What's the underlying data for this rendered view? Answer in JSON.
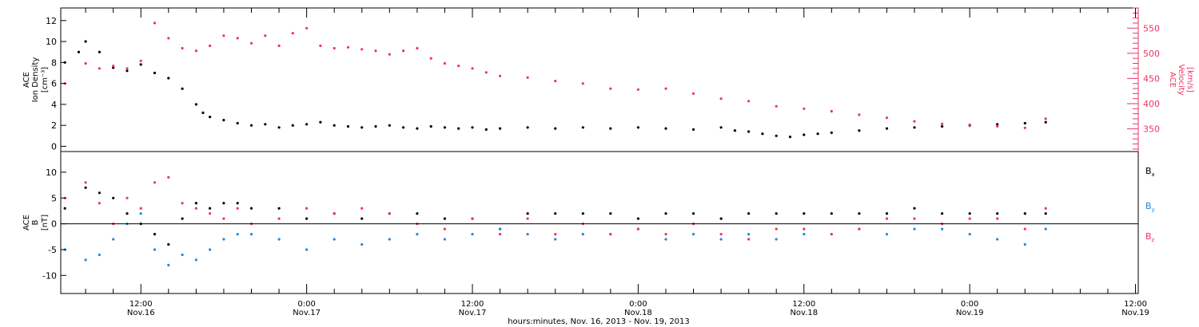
{
  "x_axis": {
    "title": "hours:minutes, Nov. 16, 2013 - Nov. 19, 2013",
    "ticks": [
      {
        "t": 12,
        "time": "12:00",
        "date": "Nov.16"
      },
      {
        "t": 24,
        "time": "0:00",
        "date": "Nov.17"
      },
      {
        "t": 36,
        "time": "12:00",
        "date": "Nov.17"
      },
      {
        "t": 48,
        "time": "0:00",
        "date": "Nov.18"
      },
      {
        "t": 60,
        "time": "12:00",
        "date": "Nov.18"
      },
      {
        "t": 72,
        "time": "0:00",
        "date": "Nov.19"
      },
      {
        "t": 84,
        "time": "12:00",
        "date": "Nov.19"
      }
    ]
  },
  "colors": {
    "black": "#000000",
    "pink": "#ee3366",
    "blue": "#1e88e5"
  },
  "chart_data": [
    {
      "type": "scatter",
      "panel": "top",
      "xlim": [
        6.2,
        84.2
      ],
      "ylim_left": [
        -0.5,
        13.2
      ],
      "ylim_right": [
        305,
        590
      ],
      "left_label_lines": [
        "ACE",
        "Ion Density",
        "[cm⁻³]"
      ],
      "right_label_lines": [
        "ACE",
        "Velocity",
        "[km/s]"
      ],
      "left_ticks": [
        0,
        2,
        4,
        6,
        8,
        10,
        12
      ],
      "right_ticks": [
        350,
        400,
        450,
        500,
        550
      ],
      "series": [
        {
          "axis": "left",
          "color": "black",
          "x": [
            6.5,
            7.5,
            8.0,
            9.0,
            10.0,
            11.0,
            12.0,
            13.0,
            14.0,
            15.0,
            16.0,
            16.5,
            17.0,
            18.0,
            19.0,
            20.0,
            21.0,
            22.0,
            23.0,
            24.0,
            25.0,
            26.0,
            27.0,
            28.0,
            29.0,
            30.0,
            31.0,
            32.0,
            33.0,
            34.0,
            35.0,
            36.0,
            37.0,
            38.0,
            40.0,
            42.0,
            44.0,
            46.0,
            48.0,
            50.0,
            52.0,
            54.0,
            55.0,
            56.0,
            57.0,
            58.0,
            59.0,
            60.0,
            61.0,
            62.0,
            64.0,
            66.0,
            68.0,
            70.0,
            72.0,
            74.0,
            76.0,
            77.5
          ],
          "y": [
            8,
            9,
            10,
            9,
            7.5,
            7.2,
            7.8,
            7,
            6.5,
            5.5,
            4,
            3.2,
            2.8,
            2.5,
            2.2,
            2.0,
            2.1,
            1.8,
            2.0,
            2.1,
            2.3,
            2.0,
            1.9,
            1.8,
            1.9,
            2.0,
            1.8,
            1.7,
            1.9,
            1.8,
            1.7,
            1.8,
            1.6,
            1.7,
            1.8,
            1.7,
            1.8,
            1.7,
            1.8,
            1.7,
            1.6,
            1.8,
            1.5,
            1.4,
            1.2,
            1.0,
            0.9,
            1.1,
            1.2,
            1.3,
            1.5,
            1.7,
            1.8,
            1.9,
            2.0,
            2.1,
            2.2,
            2.3
          ]
        },
        {
          "axis": "right",
          "color": "pink",
          "x": [
            6.5,
            8.0,
            9.0,
            10.0,
            11.0,
            12.0,
            13.0,
            14.0,
            15.0,
            16.0,
            17.0,
            18.0,
            19.0,
            20.0,
            21.0,
            22.0,
            23.0,
            24.0,
            25.0,
            26.0,
            27.0,
            28.0,
            29.0,
            30.0,
            31.0,
            32.0,
            33.0,
            34.0,
            35.0,
            36.0,
            37.0,
            38.0,
            40.0,
            42.0,
            44.0,
            46.0,
            48.0,
            50.0,
            52.0,
            54.0,
            56.0,
            58.0,
            60.0,
            62.0,
            64.0,
            66.0,
            68.0,
            70.0,
            72.0,
            74.0,
            76.0,
            77.5
          ],
          "y": [
            440,
            480,
            470,
            475,
            470,
            485,
            560,
            530,
            510,
            505,
            515,
            535,
            530,
            520,
            535,
            515,
            540,
            550,
            515,
            510,
            512,
            508,
            505,
            498,
            505,
            510,
            490,
            480,
            475,
            470,
            462,
            455,
            452,
            445,
            440,
            430,
            428,
            430,
            420,
            410,
            405,
            395,
            390,
            385,
            378,
            372,
            365,
            360,
            358,
            355,
            352,
            370
          ]
        }
      ]
    },
    {
      "type": "scatter",
      "panel": "bottom",
      "xlim": [
        6.2,
        84.2
      ],
      "ylim": [
        -13.5,
        14.0
      ],
      "label_lines": [
        "ACE",
        "B",
        "[nT]"
      ],
      "ticks": [
        -10,
        -5,
        0,
        5,
        10
      ],
      "series": [
        {
          "name": "Bx",
          "color": "black",
          "x": [
            6.5,
            8.0,
            9.0,
            10.0,
            11.0,
            12.0,
            13.0,
            14.0,
            15.0,
            16.0,
            17.0,
            18.0,
            19.0,
            20.0,
            22.0,
            24.0,
            26.0,
            28.0,
            30.0,
            32.0,
            34.0,
            36.0,
            38.0,
            40.0,
            42.0,
            44.0,
            46.0,
            48.0,
            50.0,
            52.0,
            54.0,
            56.0,
            58.0,
            60.0,
            62.0,
            64.0,
            66.0,
            68.0,
            70.0,
            72.0,
            74.0,
            76.0,
            77.5
          ],
          "y": [
            3,
            7,
            6,
            5,
            2,
            0,
            -2,
            -4,
            1,
            4,
            3,
            4,
            4,
            3,
            3,
            1,
            2,
            1,
            2,
            2,
            1,
            1,
            -1,
            2,
            2,
            2,
            2,
            1,
            2,
            2,
            1,
            2,
            2,
            2,
            2,
            2,
            2,
            3,
            2,
            2,
            2,
            2,
            2
          ]
        },
        {
          "name": "By",
          "color": "blue",
          "x": [
            6.5,
            8.0,
            9.0,
            10.0,
            11.0,
            12.0,
            13.0,
            14.0,
            15.0,
            16.0,
            17.0,
            18.0,
            19.0,
            20.0,
            22.0,
            24.0,
            26.0,
            28.0,
            30.0,
            32.0,
            34.0,
            36.0,
            38.0,
            40.0,
            42.0,
            44.0,
            46.0,
            48.0,
            50.0,
            52.0,
            54.0,
            56.0,
            58.0,
            60.0,
            62.0,
            64.0,
            66.0,
            68.0,
            70.0,
            72.0,
            74.0,
            76.0,
            77.5
          ],
          "y": [
            -5,
            -7,
            -6,
            -3,
            0,
            2,
            -5,
            -8,
            -6,
            -7,
            -5,
            -3,
            -2,
            -2,
            -3,
            -5,
            -3,
            -4,
            -3,
            -2,
            -3,
            -2,
            -1,
            -2,
            -3,
            -2,
            -2,
            -1,
            -3,
            -2,
            -3,
            -2,
            -3,
            -2,
            -2,
            -1,
            -2,
            -1,
            -1,
            -2,
            -3,
            -4,
            -1
          ]
        },
        {
          "name": "Bz",
          "color": "pink",
          "x": [
            6.5,
            8.0,
            9.0,
            10.0,
            11.0,
            12.0,
            13.0,
            14.0,
            15.0,
            16.0,
            17.0,
            18.0,
            19.0,
            20.0,
            22.0,
            24.0,
            26.0,
            28.0,
            30.0,
            32.0,
            34.0,
            36.0,
            38.0,
            40.0,
            42.0,
            44.0,
            46.0,
            48.0,
            50.0,
            52.0,
            54.0,
            56.0,
            58.0,
            60.0,
            62.0,
            64.0,
            66.0,
            68.0,
            70.0,
            72.0,
            74.0,
            76.0,
            77.5
          ],
          "y": [
            5,
            8,
            4,
            0,
            5,
            3,
            8,
            9,
            4,
            3,
            2,
            1,
            3,
            0,
            1,
            3,
            2,
            3,
            2,
            0,
            -1,
            1,
            -2,
            1,
            -2,
            0,
            -2,
            -1,
            -2,
            0,
            -2,
            -3,
            -1,
            -1,
            -2,
            -1,
            1,
            1,
            0,
            1,
            1,
            -1,
            3
          ]
        }
      ],
      "legend": [
        {
          "label": "B",
          "sub": "x",
          "color": "black"
        },
        {
          "label": "B",
          "sub": "y",
          "color": "blue"
        },
        {
          "label": "B",
          "sub": "z",
          "color": "pink"
        }
      ]
    }
  ]
}
